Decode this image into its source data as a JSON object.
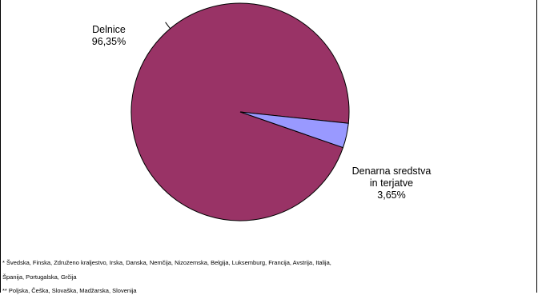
{
  "chart_data": {
    "type": "pie",
    "slices": [
      {
        "name": "Delnice",
        "value_label": "96,35%",
        "value": 96.35,
        "color": "#993366"
      },
      {
        "name_lines": [
          "Denarna sredstva",
          "in terjatve"
        ],
        "value_label": "3,65%",
        "value": 3.65,
        "color": "#9999ff"
      }
    ]
  },
  "footnotes": {
    "note1_line1": "* Švedska, Finska, Združeno kraljestvo, Irska, Danska, Nemčija, Nizozemska, Belgija, Luksemburg, Francija, Avstrija, Italija,",
    "note1_line2": "Španija, Portugalska, Grčija",
    "note2": "** Poljska, Češka, Slovaška, Madžarska, Slovenija"
  }
}
